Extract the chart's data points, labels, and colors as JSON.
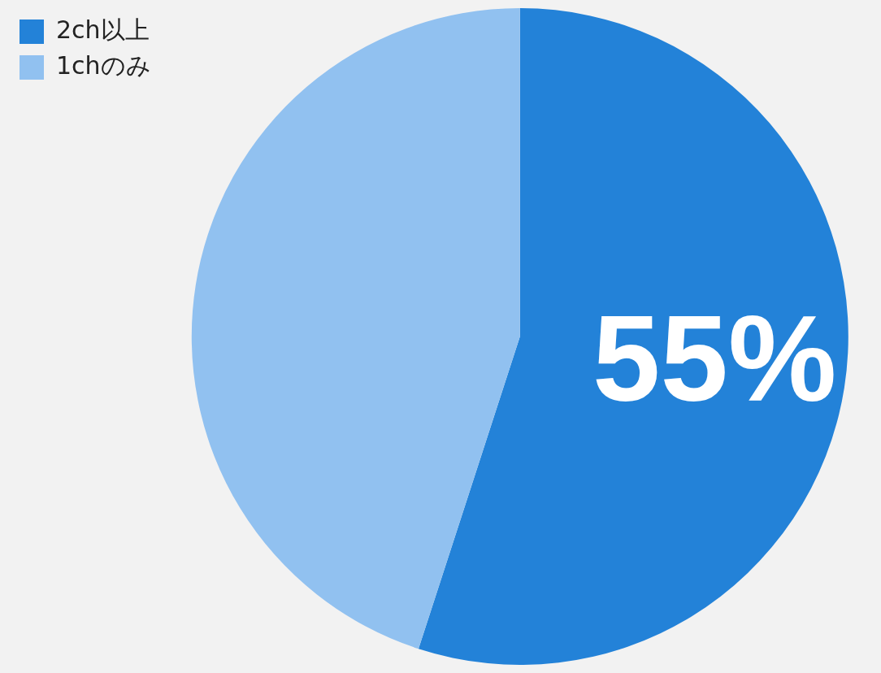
{
  "chart_data": {
    "type": "pie",
    "categories": [
      "2ch以上",
      "1chのみ"
    ],
    "values": [
      55,
      45
    ],
    "colors": [
      "#2382d8",
      "#91c1f0"
    ],
    "value_labels": [
      "55%",
      null
    ],
    "legend": "top left"
  }
}
